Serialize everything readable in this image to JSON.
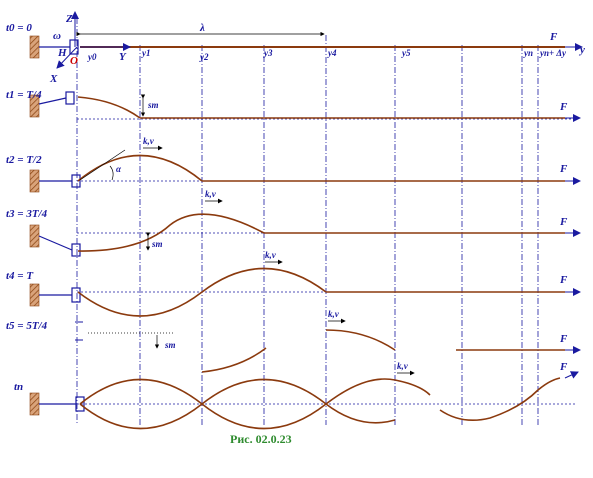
{
  "labels": {
    "t0": "t0 = 0",
    "t1": "t1 = T/4",
    "t2": "t2 = T/2",
    "t3": "t3 = 3T/4",
    "t4": "t4 = T",
    "t5": "t5 = 5T/4",
    "tn": "tn",
    "Z": "Z",
    "X": "X",
    "Y": "Y",
    "H": "H",
    "O": "O",
    "omega": "ω",
    "lambda": "λ",
    "alpha": "α",
    "F": "F",
    "y": "y",
    "s_m": "sm",
    "k_v": "k,v",
    "y0": "y0",
    "y1": "y1",
    "y2": "y2",
    "y3": "y3",
    "y4": "y4",
    "y5": "y5",
    "yn": "yn",
    "yn_dy": "yn+ Δy"
  },
  "caption": "Рис. 02.0.23",
  "colors": {
    "axis": "#1a1aa0",
    "wave": "#8b3a0e",
    "wall": "#a0522d",
    "caption": "#2e8b2e",
    "origin": "#cc0000"
  }
}
